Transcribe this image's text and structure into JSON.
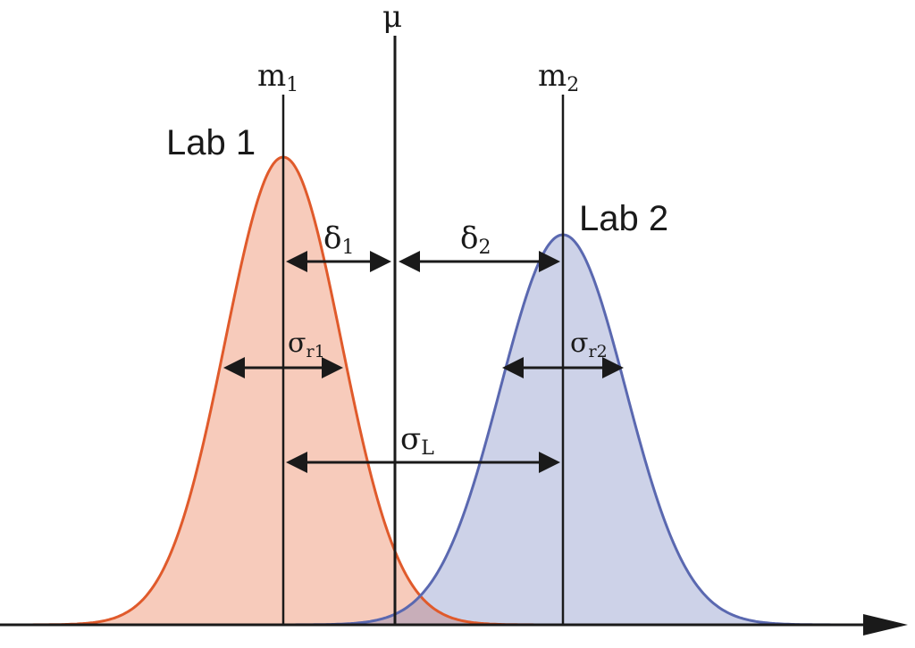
{
  "colors": {
    "lab1_stroke": "#e05a2b",
    "lab1_fill": "#f7cbbb",
    "lab2_stroke": "#5a68b0",
    "lab2_fill": "#cdd2e8",
    "overlap_fill": "#c8aeb9",
    "ink": "#1a1a1a"
  },
  "labels": {
    "lab1": "Lab 1",
    "lab2": "Lab 2",
    "mu": "μ",
    "m1": {
      "base": "m",
      "sub": "1"
    },
    "m2": {
      "base": "m",
      "sub": "2"
    },
    "delta1": {
      "base": "δ",
      "sub": "1"
    },
    "delta2": {
      "base": "δ",
      "sub": "2"
    },
    "sigma_r1": {
      "base": "σ",
      "sub": "r1"
    },
    "sigma_r2": {
      "base": "σ",
      "sub": "r2"
    },
    "sigma_L": {
      "base": "σ",
      "sub": "L"
    }
  }
}
